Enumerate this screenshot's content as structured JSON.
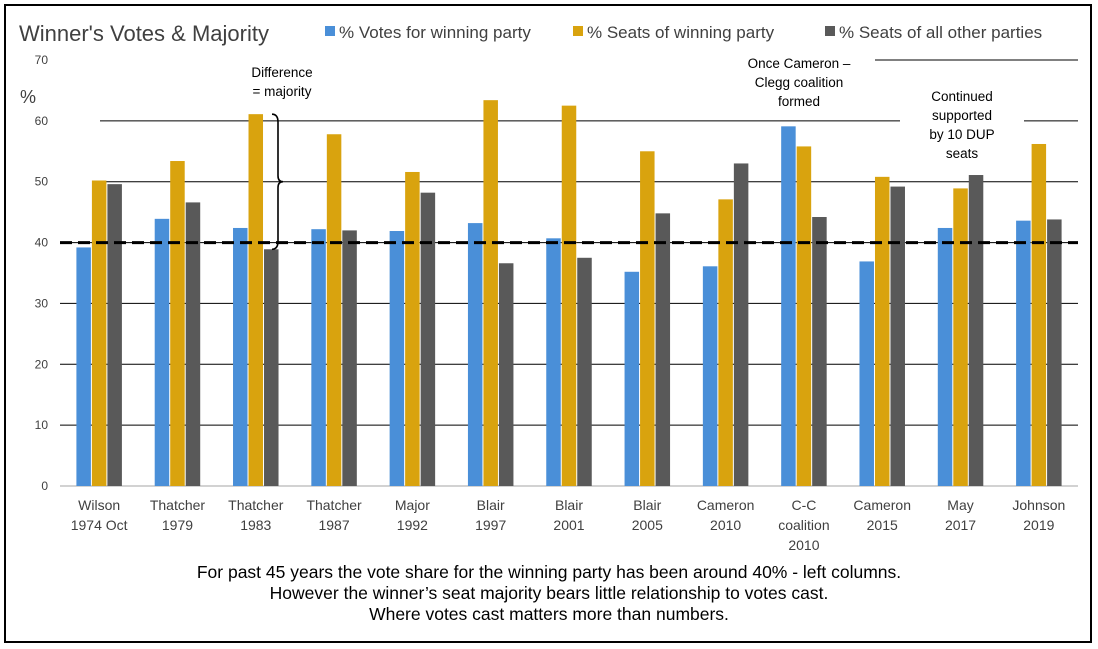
{
  "chart_data": {
    "type": "bar",
    "title": "Winner's Votes & Majority",
    "ylabel": "%",
    "ylim": [
      0,
      70
    ],
    "yticks": [
      0,
      10,
      20,
      30,
      40,
      50,
      60,
      70
    ],
    "grid": true,
    "legend_position": "top",
    "reference_line": {
      "y": 40,
      "style": "dashed"
    },
    "categories": [
      [
        "Wilson",
        "1974 Oct"
      ],
      [
        "Thatcher",
        "1979"
      ],
      [
        "Thatcher",
        "1983"
      ],
      [
        "Thatcher",
        "1987"
      ],
      [
        "Major",
        "1992"
      ],
      [
        "Blair",
        "1997"
      ],
      [
        "Blair",
        "2001"
      ],
      [
        "Blair",
        "2005"
      ],
      [
        "Cameron",
        "2010"
      ],
      [
        "C-C",
        "coalition",
        "2010"
      ],
      [
        "Cameron",
        "2015"
      ],
      [
        "May",
        "2017"
      ],
      [
        "Johnson",
        "2019"
      ]
    ],
    "series": [
      {
        "name": "% Votes for winning party",
        "color": "#4a8fd8",
        "values": [
          39.2,
          43.9,
          42.4,
          42.2,
          41.9,
          43.2,
          40.7,
          35.2,
          36.1,
          59.1,
          36.9,
          42.4,
          43.6
        ]
      },
      {
        "name": "% Seats of winning party",
        "color": "#d9a30e",
        "values": [
          50.2,
          53.4,
          61.1,
          57.8,
          51.6,
          63.4,
          62.5,
          55.0,
          47.1,
          55.8,
          50.8,
          48.9,
          56.2
        ]
      },
      {
        "name": "% Seats of all other parties",
        "color": "#595959",
        "values": [
          49.6,
          46.6,
          38.9,
          42.0,
          48.2,
          36.6,
          37.5,
          44.8,
          53.0,
          44.2,
          49.2,
          51.1,
          43.8
        ]
      }
    ],
    "annotations": [
      {
        "lines": [
          "Difference",
          "= majority"
        ]
      },
      {
        "lines": [
          "Once Cameron –",
          "Clegg coalition",
          "formed"
        ]
      },
      {
        "lines": [
          "Continued",
          "supported",
          "by 10 DUP",
          "seats"
        ]
      }
    ]
  },
  "caption": [
    "For past 45 years the vote share for the winning party has been around 40% - left columns.",
    "However the winner’s seat majority bears little relationship to votes cast.",
    "Where votes cast matters more than numbers."
  ]
}
